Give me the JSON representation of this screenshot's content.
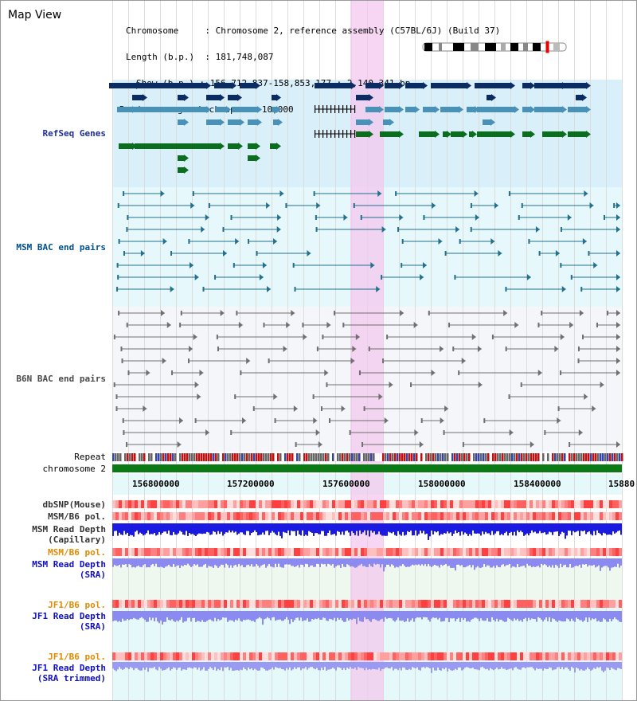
{
  "title": "Map View",
  "info": {
    "chromosome_label": "Chromosome",
    "chromosome_value": "Chromosome 2, reference assembly (C57BL/6J) (Build 37)",
    "length_label": "Length (b.p.)",
    "length_value": "181,748,087",
    "show_label": "Show (b.p.)",
    "show_value": "156,712,837-158,853,177 : 2,140,341 bp",
    "coverage_label": "Read coverage check span",
    "coverage_value": "10,000"
  },
  "tracks": {
    "refseq": "RefSeq Genes",
    "msm_bac": "MSM BAC end pairs",
    "b6n_bac": "B6N BAC end pairs",
    "repeat": "Repeat",
    "chromosome": "chromosome 2",
    "dbsnp": "dbSNP(Mouse)",
    "msm_b6_pol_1": "MSM/B6 pol.",
    "msm_read_depth_cap_1": "MSM Read Depth",
    "msm_read_depth_cap_2": "(Capillary)",
    "msm_b6_pol_2": "MSM/B6 pol.",
    "msm_read_depth_sra_1": "MSM Read Depth",
    "msm_read_depth_sra_2": "(SRA)",
    "jf1_b6_pol_1": "JF1/B6 pol.",
    "jf1_read_depth_1": "JF1 Read Depth",
    "jf1_read_depth_2": "(SRA)",
    "jf1_b6_pol_2": "JF1/B6 pol.",
    "jf1_read_depth_trim_1": "JF1 Read Depth",
    "jf1_read_depth_trim_2": "(SRA trimmed)"
  },
  "axis": {
    "ticks": [
      "156800000",
      "157200000",
      "157600000",
      "158000000",
      "158400000",
      "15880"
    ]
  },
  "colors": {
    "refseq_bg": "#d9eff9",
    "msm_bg": "#e6f8fb",
    "b6n_bg": "#f4f6fa",
    "lower_bg": "#eef8ef",
    "lower_bg2": "#e6f9fa",
    "highlight": "#f3c8ee",
    "msm_label": "#00508a",
    "b6n_label": "#4a4a4a",
    "refseq_label": "#1e2f9a",
    "pol_orange": "#e08a00",
    "depth_blue": "#1010c0",
    "chrom_green": "#0a7a14"
  }
}
